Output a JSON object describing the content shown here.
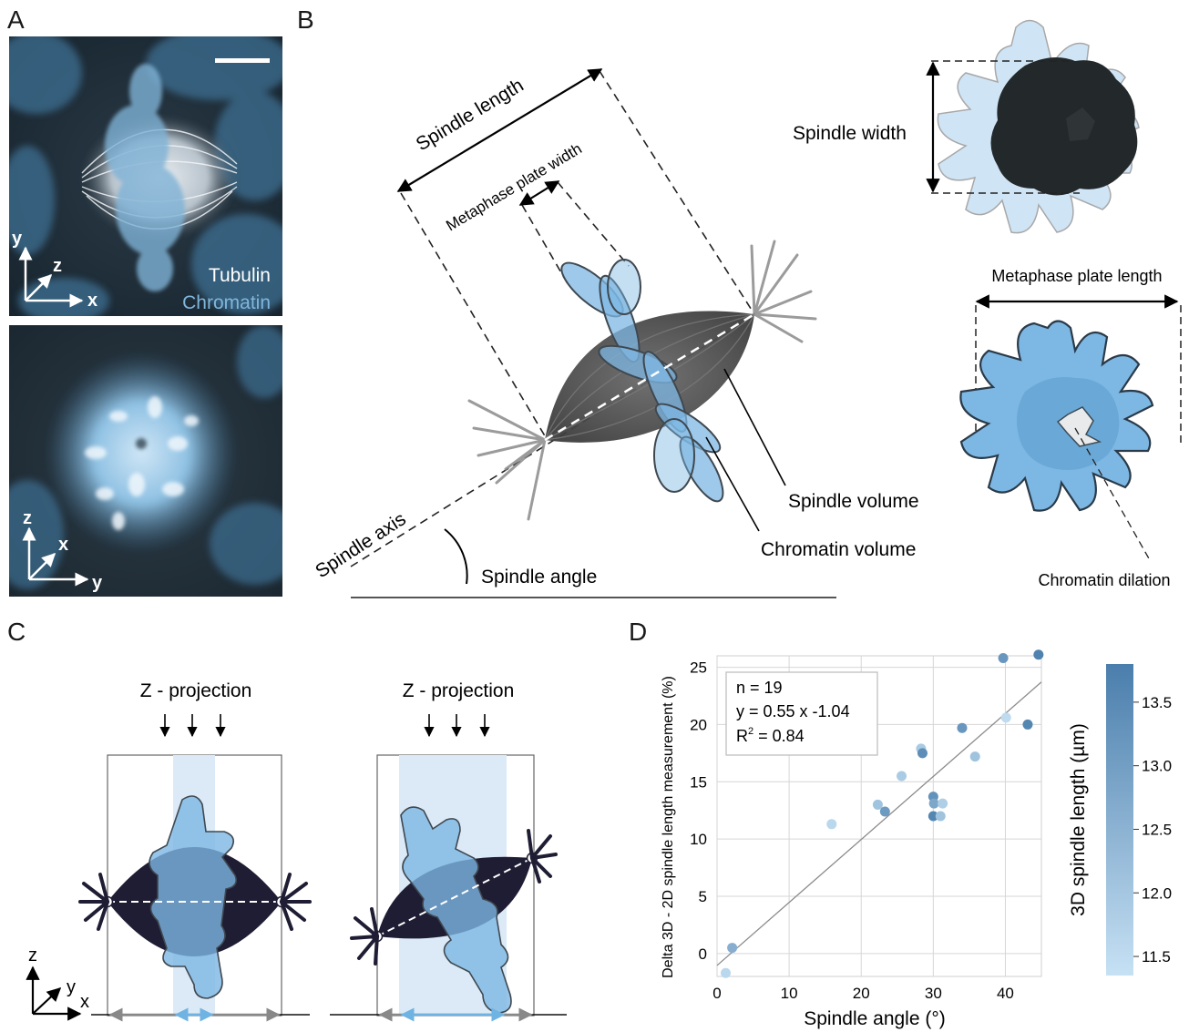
{
  "panels": {
    "a": "A",
    "b": "B",
    "c": "C",
    "d": "D"
  },
  "panel_a": {
    "top_labels": {
      "tubulin": "Tubulin",
      "chromatin": "Chromatin"
    },
    "top_axes": {
      "y": "y",
      "z": "z",
      "x": "x"
    },
    "bottom_axes": {
      "z": "z",
      "x": "x",
      "y": "y"
    },
    "colors": {
      "tubulin": "#ffffff",
      "chromatin": "#7fb6dc",
      "background": "#1b2730"
    }
  },
  "panel_b": {
    "spindle_length": "Spindle length",
    "metaphase_plate_width": "Metaphase plate width",
    "spindle_axis": "Spindle axis",
    "spindle_angle": "Spindle angle",
    "spindle_volume": "Spindle volume",
    "chromatin_volume": "Chromatin volume",
    "spindle_width": "Spindle width",
    "metaphase_plate_length": "Metaphase plate length",
    "chromatin_dilation": "Chromatin dilation"
  },
  "panel_c": {
    "left_title": "Z - projection",
    "right_title": "Z - projection",
    "axes": {
      "z": "z",
      "y": "y",
      "x": "x"
    }
  },
  "chart_data": {
    "type": "scatter",
    "xlabel": "Spindle angle (°)",
    "ylabel": "Delta 3D - 2D spindle length measurement (%)",
    "xlim": [
      0,
      45
    ],
    "ylim": [
      -2,
      26
    ],
    "xticks": [
      0,
      10,
      20,
      30,
      40
    ],
    "yticks": [
      0,
      5,
      10,
      15,
      20,
      25
    ],
    "grid": true,
    "annotation": {
      "n": "n = 19",
      "equation": "y = 0.55 x -1.04",
      "r2_prefix": "R",
      "r2_sup": "2",
      "r2_suffix": " = 0.84"
    },
    "fit": {
      "slope": 0.55,
      "intercept": -1.04
    },
    "points": [
      {
        "x": 1.2,
        "y": -1.7,
        "c": 11.6
      },
      {
        "x": 2.1,
        "y": 0.5,
        "c": 12.6
      },
      {
        "x": 15.9,
        "y": 11.3,
        "c": 11.6
      },
      {
        "x": 22.3,
        "y": 13.0,
        "c": 12.1
      },
      {
        "x": 23.3,
        "y": 12.4,
        "c": 13.1
      },
      {
        "x": 25.6,
        "y": 15.5,
        "c": 11.9
      },
      {
        "x": 28.3,
        "y": 17.9,
        "c": 11.9
      },
      {
        "x": 28.5,
        "y": 17.5,
        "c": 13.4
      },
      {
        "x": 30.0,
        "y": 13.7,
        "c": 13.3
      },
      {
        "x": 30.1,
        "y": 13.1,
        "c": 12.8
      },
      {
        "x": 30.0,
        "y": 12.0,
        "c": 13.6
      },
      {
        "x": 31.0,
        "y": 12.0,
        "c": 12.1
      },
      {
        "x": 31.3,
        "y": 13.1,
        "c": 11.8
      },
      {
        "x": 34.0,
        "y": 19.7,
        "c": 13.2
      },
      {
        "x": 35.8,
        "y": 17.2,
        "c": 12.1
      },
      {
        "x": 39.7,
        "y": 25.8,
        "c": 13.2
      },
      {
        "x": 40.1,
        "y": 20.6,
        "c": 11.5
      },
      {
        "x": 43.1,
        "y": 20.0,
        "c": 13.6
      },
      {
        "x": 44.6,
        "y": 26.1,
        "c": 13.7
      }
    ],
    "colorbar": {
      "label": "3D spindle length (µm)",
      "min": 11.35,
      "max": 13.8,
      "ticks": [
        "11.5",
        "12.0",
        "12.5",
        "13.0",
        "13.5"
      ],
      "tick_values": [
        11.5,
        12.0,
        12.5,
        13.0,
        13.5
      ],
      "color_low": "#c6e1f4",
      "color_high": "#4a7eac"
    }
  }
}
